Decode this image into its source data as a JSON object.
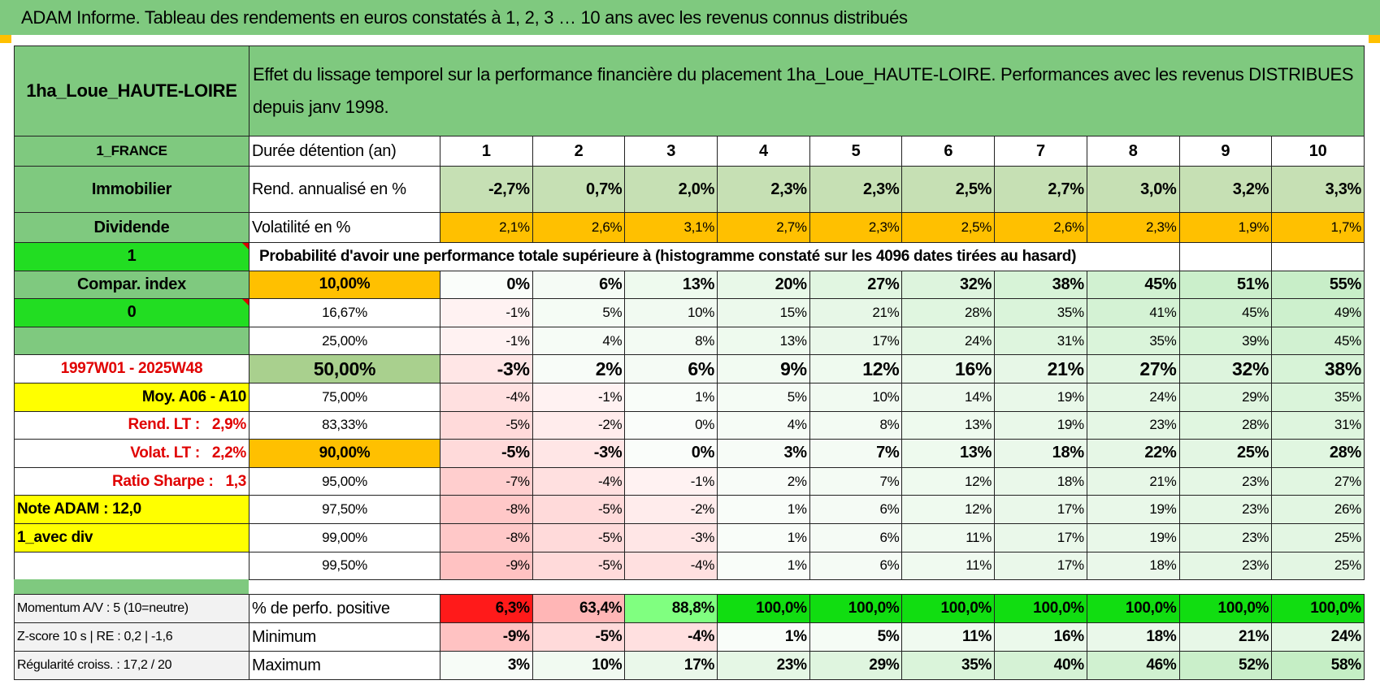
{
  "header": {
    "title": "ADAM Informe. Tableau des rendements en euros constatés à 1, 2, 3 … 10 ans avec les revenus connus distribués"
  },
  "table": {
    "name": "1ha_Loue_HAUTE-LOIRE",
    "description": "Effet du lissage temporel sur la performance financière du placement 1ha_Loue_HAUTE-LOIRE. Performances avec les revenus DISTRIBUES depuis janv 1998.",
    "rows": [
      {
        "side": "1_FRANCE",
        "label": "Durée détention (an)",
        "cells": [
          "1",
          "2",
          "3",
          "4",
          "5",
          "6",
          "7",
          "8",
          "9",
          "10"
        ]
      },
      {
        "side": "Immobilier",
        "label": "Rend. annualisé en %",
        "cells": [
          "-2,7%",
          "0,7%",
          "2,0%",
          "2,3%",
          "2,3%",
          "2,5%",
          "2,7%",
          "3,0%",
          "3,2%",
          "3,3%"
        ]
      },
      {
        "side": "Dividende",
        "label": "Volatilité en %",
        "cells": [
          "2,1%",
          "2,6%",
          "3,1%",
          "2,7%",
          "2,3%",
          "2,5%",
          "2,6%",
          "2,3%",
          "1,9%",
          "1,7%"
        ]
      },
      {
        "side": "1",
        "label": "Probabilité d'avoir une performance totale supérieure à (histogramme constaté sur les 4096 dates tirées au hasard)"
      },
      {
        "side": "Compar. index",
        "label": "10,00%",
        "cells": [
          "0%",
          "6%",
          "13%",
          "20%",
          "27%",
          "32%",
          "38%",
          "45%",
          "51%",
          "55%"
        ]
      },
      {
        "side": "0",
        "label": "16,67%",
        "cells": [
          "-1%",
          "5%",
          "10%",
          "15%",
          "21%",
          "28%",
          "35%",
          "41%",
          "45%",
          "49%"
        ]
      },
      {
        "label": "25,00%",
        "cells": [
          "-1%",
          "4%",
          "8%",
          "13%",
          "17%",
          "24%",
          "31%",
          "35%",
          "39%",
          "45%"
        ]
      },
      {
        "side": "1997W01 - 2025W48",
        "label": "50,00%",
        "cells": [
          "-3%",
          "2%",
          "6%",
          "9%",
          "12%",
          "16%",
          "21%",
          "27%",
          "32%",
          "38%"
        ]
      },
      {
        "side": "Moy. A06 - A10",
        "label": "75,00%",
        "cells": [
          "-4%",
          "-1%",
          "1%",
          "5%",
          "10%",
          "14%",
          "19%",
          "24%",
          "29%",
          "35%"
        ]
      },
      {
        "side": "Rend. LT :   2,9%",
        "label": "83,33%",
        "cells": [
          "-5%",
          "-2%",
          "0%",
          "4%",
          "8%",
          "13%",
          "19%",
          "23%",
          "28%",
          "31%"
        ]
      },
      {
        "side": "Volat. LT :   2,2%",
        "label": "90,00%",
        "cells": [
          "-5%",
          "-3%",
          "0%",
          "3%",
          "7%",
          "13%",
          "18%",
          "22%",
          "25%",
          "28%"
        ]
      },
      {
        "side": "Ratio Sharpe :   1,3",
        "label": "95,00%",
        "cells": [
          "-7%",
          "-4%",
          "-1%",
          "2%",
          "7%",
          "12%",
          "18%",
          "21%",
          "23%",
          "27%"
        ]
      },
      {
        "side": "Note ADAM : 12,0",
        "label": "97,50%",
        "cells": [
          "-8%",
          "-5%",
          "-2%",
          "1%",
          "6%",
          "12%",
          "17%",
          "19%",
          "23%",
          "26%"
        ]
      },
      {
        "side": "1_avec div",
        "label": "99,00%",
        "cells": [
          "-8%",
          "-5%",
          "-3%",
          "1%",
          "6%",
          "11%",
          "17%",
          "19%",
          "23%",
          "25%"
        ]
      },
      {
        "label": "99,50%",
        "cells": [
          "-9%",
          "-5%",
          "-4%",
          "1%",
          "6%",
          "11%",
          "17%",
          "18%",
          "23%",
          "25%"
        ]
      }
    ],
    "summary_rows": [
      {
        "side": "Momentum A/V : 5 (10=neutre)",
        "label": "% de perfo. positive",
        "cells": [
          "6,3%",
          "63,4%",
          "88,8%",
          "100,0%",
          "100,0%",
          "100,0%",
          "100,0%",
          "100,0%",
          "100,0%",
          "100,0%"
        ]
      },
      {
        "side": "Z-score 10 s | RE : 0,2 | -1,6",
        "label": "Minimum",
        "cells": [
          "-9%",
          "-5%",
          "-4%",
          "1%",
          "5%",
          "11%",
          "16%",
          "18%",
          "21%",
          "24%"
        ]
      },
      {
        "side": "Régularité croiss. : 17,2 / 20",
        "label": "Maximum",
        "cells": [
          "3%",
          "10%",
          "17%",
          "23%",
          "29%",
          "35%",
          "40%",
          "46%",
          "52%",
          "58%"
        ]
      }
    ]
  }
}
